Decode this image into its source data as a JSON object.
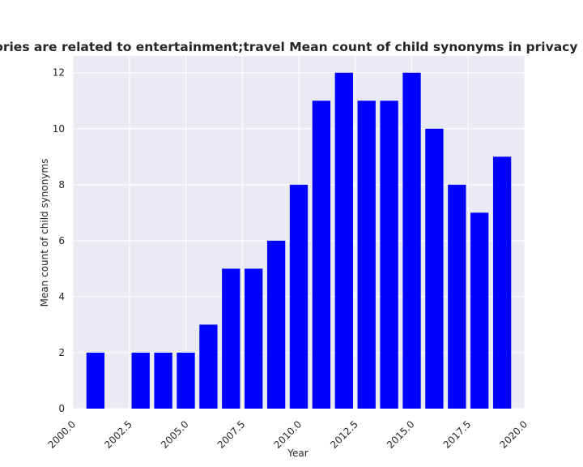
{
  "chart_data": {
    "type": "bar",
    "title": "categories are related to entertainment;travel Mean count of child synonyms in privacy policies",
    "xlabel": "Year",
    "ylabel": "Mean count of child synonyms",
    "x": [
      2001,
      2003,
      2004,
      2005,
      2006,
      2007,
      2008,
      2009,
      2010,
      2011,
      2012,
      2013,
      2014,
      2015,
      2016,
      2017,
      2018,
      2019
    ],
    "values": [
      2,
      2,
      2,
      2,
      3,
      5,
      5,
      6,
      8,
      11,
      12,
      11,
      11,
      12,
      10,
      8,
      7,
      9
    ],
    "xlim": [
      2000,
      2020
    ],
    "ylim": [
      0,
      12.6
    ],
    "xticks": [
      2000.0,
      2002.5,
      2005.0,
      2007.5,
      2010.0,
      2012.5,
      2015.0,
      2017.5,
      2020.0
    ],
    "xtick_labels": [
      "2000.0",
      "2002.5",
      "2005.0",
      "2007.5",
      "2010.0",
      "2012.5",
      "2015.0",
      "2017.5",
      "2020.0"
    ],
    "yticks": [
      0,
      2,
      4,
      6,
      8,
      10,
      12
    ],
    "ytick_labels": [
      "0",
      "2",
      "4",
      "6",
      "8",
      "10",
      "12"
    ],
    "grid": true,
    "colors": {
      "bar": "#0000ff",
      "plot_background": "#eaeaf2",
      "grid": "#ffffff"
    }
  }
}
